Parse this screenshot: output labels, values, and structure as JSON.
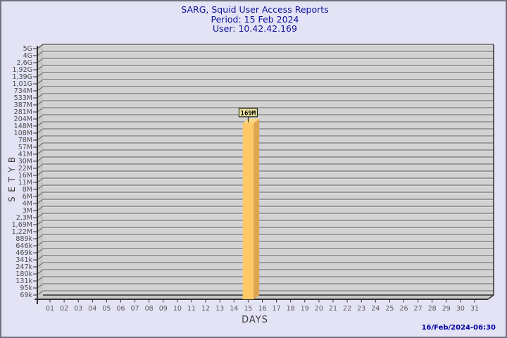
{
  "window": {
    "timestamp": "16/Feb/2024-06:30"
  },
  "chart_data": {
    "type": "bar",
    "title": "SARG, Squid User Access Reports",
    "subtitle_period": "Period: 15 Feb 2024",
    "subtitle_user": "User: 10.42.42.169",
    "xlabel": "DAYS",
    "ylabel": "BYTES",
    "y_scale": "log",
    "grid": "horizontal",
    "x_tick_labels": [
      "01",
      "02",
      "03",
      "04",
      "05",
      "06",
      "07",
      "08",
      "09",
      "10",
      "11",
      "12",
      "13",
      "14",
      "15",
      "16",
      "17",
      "18",
      "19",
      "20",
      "21",
      "22",
      "23",
      "24",
      "25",
      "26",
      "27",
      "28",
      "29",
      "30",
      "31"
    ],
    "y_tick_labels": [
      "5G",
      "4G",
      "2,6G",
      "1,92G",
      "1,39G",
      "1,01G",
      "734M",
      "533M",
      "387M",
      "281M",
      "204M",
      "148M",
      "108M",
      "78M",
      "57M",
      "41M",
      "30M",
      "22M",
      "16M",
      "11M",
      "8M",
      "6M",
      "4M",
      "3M",
      "2,3M",
      "1,69M",
      "1,22M",
      "889k",
      "646k",
      "469k",
      "341k",
      "247k",
      "180k",
      "131k",
      "95k",
      "69k"
    ],
    "bars": [
      {
        "day": "15",
        "value_label": "169M"
      }
    ],
    "colors": {
      "page_bg": "#e3e3f5",
      "plot_bg": "#d2d2d2",
      "wall": "#c7c7c7",
      "grid_line": "#636363",
      "grid_highlight": "#dedede",
      "axis_line": "#2f2f2f",
      "bar_front": "#fec966",
      "bar_side": "#dfa652",
      "bar_top": "#ffd883",
      "annotation_bg": "#efe7a0",
      "title_text": "#10109a",
      "timestamp_text": "#0000a2"
    }
  }
}
